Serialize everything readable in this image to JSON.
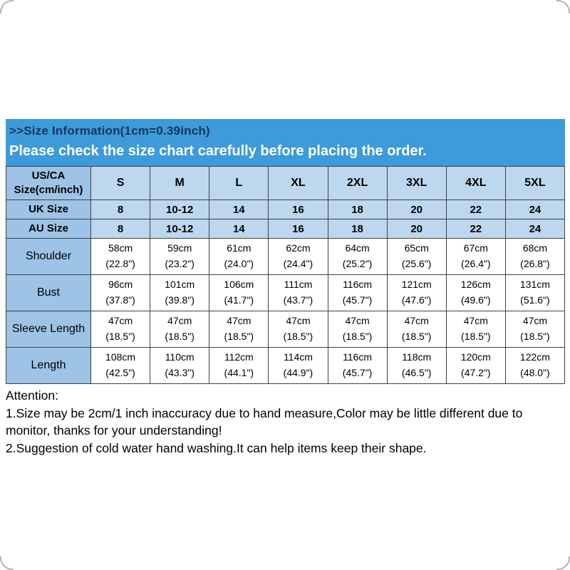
{
  "colors": {
    "banner_bg": "#3d9bd9",
    "banner_title": "#17365d",
    "banner_subtitle": "#ffffff",
    "label_col_bg": "#9dc3e6",
    "header_row_bg": "#bdd7ee",
    "cell_border": "#404040"
  },
  "header": {
    "line1": ">>Size Information(1cm=0.39inch)",
    "line2": "Please check the size chart carefully before placing the order."
  },
  "table": {
    "corner_label": "US/CA\nSize(cm/inch)",
    "columns": [
      "S",
      "M",
      "L",
      "XL",
      "2XL",
      "3XL",
      "4XL",
      "5XL"
    ],
    "size_rows": [
      {
        "label": "UK Size",
        "values": [
          "8",
          "10-12",
          "14",
          "16",
          "18",
          "20",
          "22",
          "24"
        ]
      },
      {
        "label": "AU Size",
        "values": [
          "8",
          "10-12",
          "14",
          "16",
          "18",
          "20",
          "22",
          "24"
        ]
      }
    ],
    "measure_rows": [
      {
        "label": "Shoulder",
        "values": [
          "58cm\n(22.8\")",
          "59cm\n(23.2\")",
          "61cm\n(24.0\")",
          "62cm\n(24.4\")",
          "64cm\n(25.2\")",
          "65cm\n(25.6\")",
          "67cm\n(26.4\")",
          "68cm\n(26.8\")"
        ]
      },
      {
        "label": "Bust",
        "values": [
          "96cm\n(37.8\")",
          "101cm\n(39.8\")",
          "106cm\n(41.7\")",
          "111cm\n(43.7\")",
          "116cm\n(45.7\")",
          "121cm\n(47.6\")",
          "126cm\n(49.6\")",
          "131cm\n(51.6\")"
        ]
      },
      {
        "label": "Sleeve Length",
        "values": [
          "47cm\n(18.5\")",
          "47cm\n(18.5\")",
          "47cm\n(18.5\")",
          "47cm\n(18.5\")",
          "47cm\n(18.5\")",
          "47cm\n(18.5\")",
          "47cm\n(18.5\")",
          "47cm\n(18.5\")"
        ]
      },
      {
        "label": "Length",
        "values": [
          "108cm\n(42.5\")",
          "110cm\n(43.3\")",
          "112cm\n(44.1\")",
          "114cm\n(44.9\")",
          "116cm\n(45.7\")",
          "118cm\n(46.5\")",
          "120cm\n(47.2\")",
          "122cm\n(48.0\")"
        ]
      }
    ]
  },
  "attention": {
    "title": "Attention:",
    "lines": [
      "1.Size may be 2cm/1 inch inaccuracy due to hand measure,Color may be little different due to monitor, thanks for your understanding!",
      "2.Suggestion of cold water hand washing.It can help items keep their shape."
    ]
  }
}
